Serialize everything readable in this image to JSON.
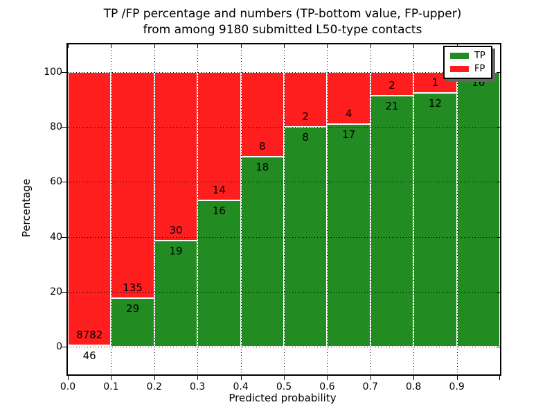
{
  "title": {
    "line1": "TP /FP percentage and numbers (TP-bottom value, FP-upper)",
    "line2": "from among 9180 submitted L50-type contacts"
  },
  "legend": {
    "position": "upper right",
    "items": [
      {
        "label": "TP",
        "color": "#228b22"
      },
      {
        "label": "FP",
        "color": "#ff1e1e"
      }
    ]
  },
  "chart_data": {
    "type": "bar",
    "stacked": true,
    "normalized_to_percent": true,
    "title": "TP /FP percentage and numbers (TP-bottom value, FP-upper) from among 9180 submitted L50-type contacts",
    "xlabel": "Predicted probability",
    "ylabel": "Percentage",
    "xlim": [
      0.0,
      1.0
    ],
    "ylim": [
      -10,
      110
    ],
    "x_tick_labels": [
      "0.0",
      "0.1",
      "0.2",
      "0.3",
      "0.4",
      "0.5",
      "0.6",
      "0.7",
      "0.8",
      "0.9"
    ],
    "y_ticks": [
      0,
      20,
      40,
      60,
      80,
      100
    ],
    "grid": true,
    "grid_style": "dotted",
    "total_contacts": 9180,
    "series": [
      {
        "name": "TP",
        "color": "#228b22"
      },
      {
        "name": "FP",
        "color": "#ff1e1e"
      }
    ],
    "bins": [
      {
        "range": [
          0.0,
          0.1
        ],
        "tp": 46,
        "fp": 8782
      },
      {
        "range": [
          0.1,
          0.2
        ],
        "tp": 29,
        "fp": 135
      },
      {
        "range": [
          0.2,
          0.3
        ],
        "tp": 19,
        "fp": 30
      },
      {
        "range": [
          0.3,
          0.4
        ],
        "tp": 16,
        "fp": 14
      },
      {
        "range": [
          0.4,
          0.5
        ],
        "tp": 18,
        "fp": 8
      },
      {
        "range": [
          0.5,
          0.6
        ],
        "tp": 8,
        "fp": 2
      },
      {
        "range": [
          0.6,
          0.7
        ],
        "tp": 17,
        "fp": 4
      },
      {
        "range": [
          0.7,
          0.8
        ],
        "tp": 21,
        "fp": 2
      },
      {
        "range": [
          0.8,
          0.9
        ],
        "tp": 12,
        "fp": 1
      },
      {
        "range": [
          0.9,
          1.0
        ],
        "tp": 16,
        "fp": 0
      }
    ]
  }
}
